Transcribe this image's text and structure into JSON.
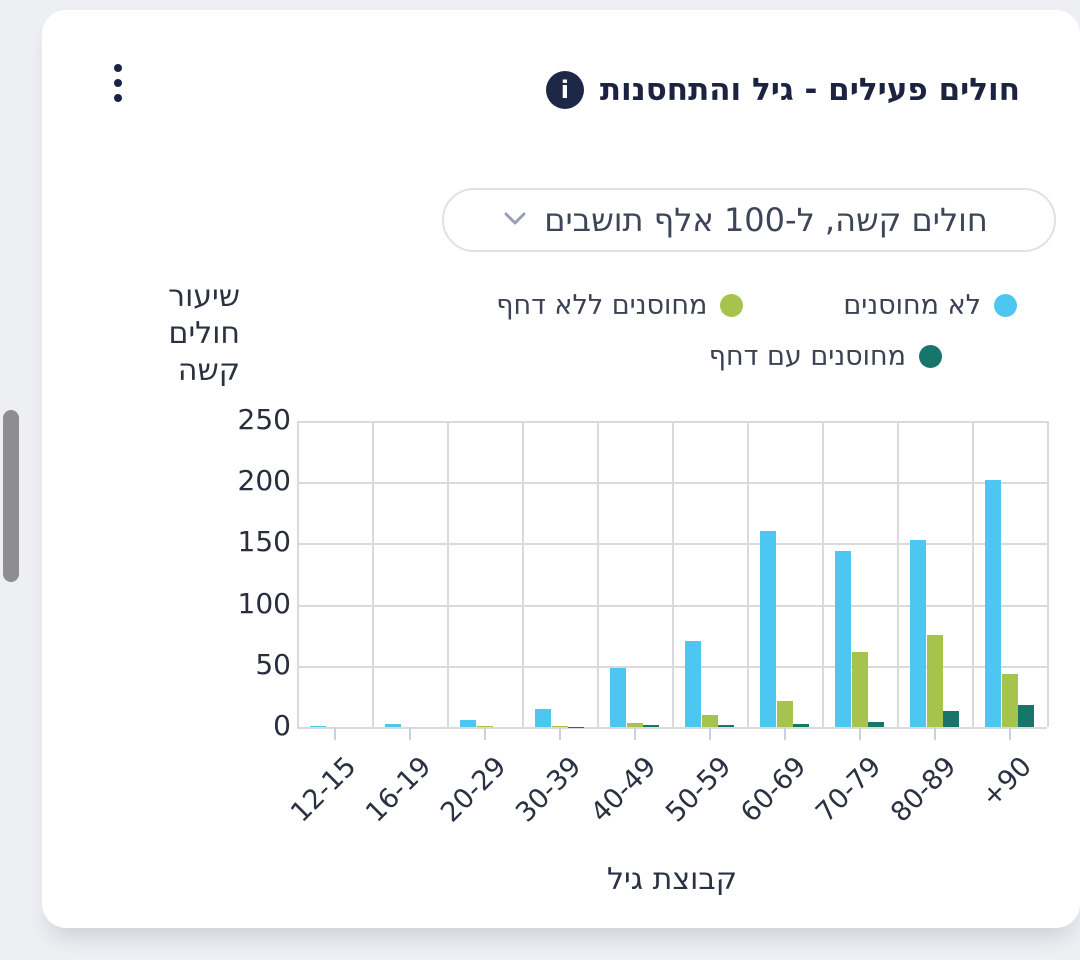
{
  "header": {
    "title": "חולים פעילים - גיל והתחסנות",
    "info_glyph": "i"
  },
  "dropdown": {
    "selected": "חולים קשה, ל-100 אלף תושבים"
  },
  "legend": {
    "items": [
      {
        "label": "לא מחוסנים",
        "color": "#4dc6f2"
      },
      {
        "label": "מחוסנים ללא דחף",
        "color": "#a6c44d"
      },
      {
        "label": "מחוסנים עם דחף",
        "color": "#17756c"
      }
    ]
  },
  "chart_data": {
    "type": "bar",
    "title": "חולים פעילים - גיל והתחסנות",
    "subtitle": "חולים קשה, ל-100 אלף תושבים",
    "xlabel": "קבוצת גיל",
    "ylabel": "שיעור חולים קשה",
    "ylabel_lines": [
      "שיעור",
      "חולים",
      "קשה"
    ],
    "categories": [
      "12-15",
      "16-19",
      "20-29",
      "30-39",
      "40-49",
      "50-59",
      "60-69",
      "70-79",
      "80-89",
      "+90"
    ],
    "series": [
      {
        "name": "לא מחוסנים",
        "color": "#4dc6f2",
        "values": [
          1,
          2.5,
          6,
          15,
          48,
          70,
          160,
          144,
          153,
          202
        ]
      },
      {
        "name": "מחוסנים ללא דחף",
        "color": "#a6c44d",
        "values": [
          0,
          0,
          0.5,
          1,
          3,
          10,
          21,
          61,
          75,
          43
        ]
      },
      {
        "name": "מחוסנים עם דחף",
        "color": "#17756c",
        "values": [
          0,
          0,
          0,
          0.3,
          1.5,
          1.5,
          2.5,
          4.5,
          13,
          18
        ]
      }
    ],
    "ylim": [
      0,
      250
    ],
    "yticks": [
      0,
      50,
      100,
      150,
      200,
      250
    ],
    "grid": true,
    "legend_position": "top-right"
  }
}
